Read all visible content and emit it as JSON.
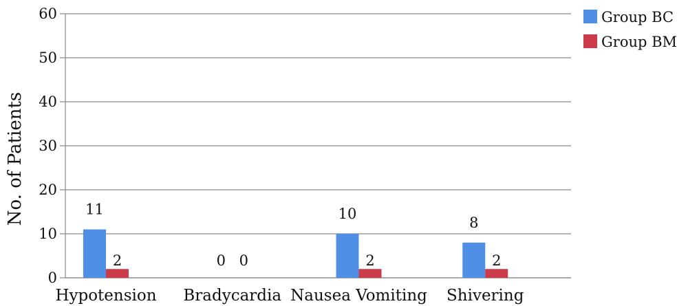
{
  "chart_data": {
    "type": "bar",
    "title": "",
    "xlabel": "",
    "ylabel": "No. of Patients",
    "ylim": [
      0,
      60
    ],
    "yticks": [
      0,
      10,
      20,
      30,
      40,
      50,
      60
    ],
    "grid": true,
    "legend_position": "top-right",
    "categories": [
      "Hypotension",
      "Bradycardia",
      "Nausea Vomiting",
      "Shivering"
    ],
    "series": [
      {
        "name": "Group BC",
        "color": "#4f8fe6",
        "values": [
          11,
          0,
          10,
          8
        ]
      },
      {
        "name": "Group BM",
        "color": "#cc3b4a",
        "values": [
          2,
          0,
          2,
          2
        ]
      }
    ]
  }
}
